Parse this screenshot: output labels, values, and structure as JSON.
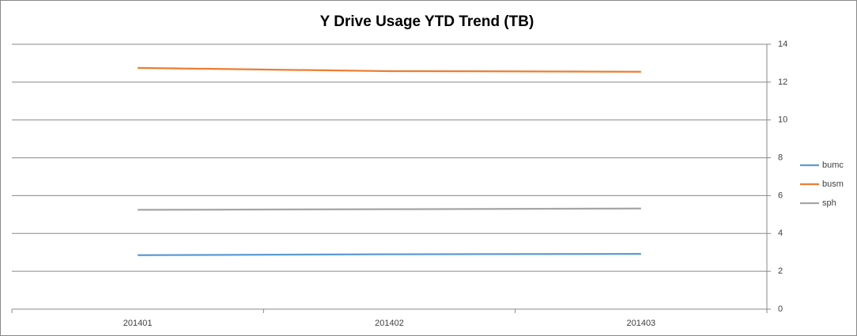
{
  "chart_data": {
    "type": "line",
    "title": "Y Drive Usage YTD Trend (TB)",
    "categories": [
      "201401",
      "201402",
      "201403"
    ],
    "series": [
      {
        "name": "bumc",
        "color": "#5b9bd5",
        "values": [
          2.85,
          2.9,
          2.92
        ]
      },
      {
        "name": "busm",
        "color": "#ed7d31",
        "values": [
          12.75,
          12.58,
          12.55
        ]
      },
      {
        "name": "sph",
        "color": "#a5a5a5",
        "values": [
          5.25,
          5.28,
          5.32
        ]
      }
    ],
    "ylim": [
      0,
      14
    ],
    "yticks": [
      0,
      2,
      4,
      6,
      8,
      10,
      12,
      14
    ],
    "grid": true,
    "y_axis_side": "right",
    "legend": "right"
  }
}
